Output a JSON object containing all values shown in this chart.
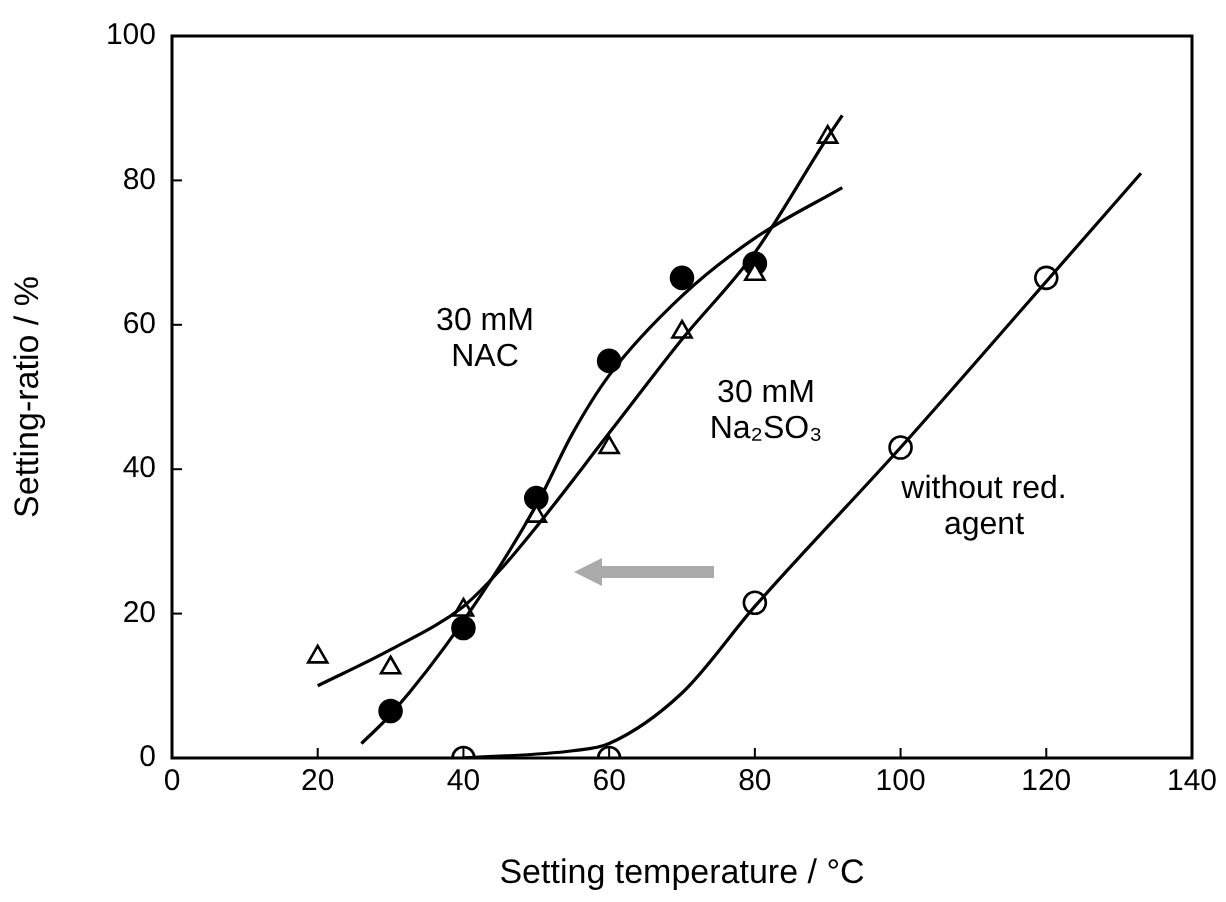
{
  "chart_data": {
    "type": "scatter",
    "xlabel": "Setting temperature / °C",
    "ylabel": "Setting-ratio / %",
    "xlim": [
      0,
      140
    ],
    "xticks": [
      0,
      20,
      40,
      60,
      80,
      100,
      120,
      140
    ],
    "ylim": [
      0,
      100
    ],
    "yticks": [
      0,
      20,
      40,
      60,
      80,
      100
    ],
    "grid": false,
    "legend": false,
    "series": [
      {
        "name": "30 mM NAC",
        "type": "scatter",
        "marker": "circle",
        "color": "#000000",
        "x": [
          30,
          40,
          50,
          60,
          70,
          80
        ],
        "values": [
          6.5,
          18,
          36,
          55,
          66.5,
          68.5
        ]
      },
      {
        "name": "30 mM Na₂SO₃",
        "type": "scatter",
        "marker": "triangle",
        "color": "#ffffff",
        "x": [
          20,
          30,
          40,
          50,
          60,
          70,
          80,
          90
        ],
        "values": [
          14,
          12.5,
          20.5,
          33.5,
          43,
          59,
          67,
          86
        ]
      },
      {
        "name": "without red. agent",
        "type": "scatter",
        "marker": "circle",
        "color": "#ffffff",
        "x": [
          40,
          60,
          80,
          100,
          120
        ],
        "values": [
          0,
          0,
          21.5,
          43,
          66.5
        ]
      },
      {
        "type": "line",
        "marker": "none",
        "color": "#000000",
        "x": [
          26,
          30,
          40,
          50,
          55,
          60,
          70,
          80,
          92
        ],
        "values": [
          2,
          6,
          19,
          35,
          45,
          53,
          64,
          72,
          79
        ]
      },
      {
        "type": "line",
        "marker": "none",
        "color": "#000000",
        "x": [
          20,
          30,
          40,
          45,
          50,
          60,
          70,
          80,
          90,
          92
        ],
        "values": [
          10,
          15,
          21,
          26,
          32,
          45,
          58,
          70,
          86,
          89
        ]
      },
      {
        "type": "line",
        "marker": "none",
        "color": "#000000",
        "x": [
          40,
          55,
          60,
          70,
          80,
          100,
          120,
          133
        ],
        "values": [
          0,
          1,
          2,
          9,
          21,
          43,
          66,
          81
        ]
      }
    ]
  }
}
